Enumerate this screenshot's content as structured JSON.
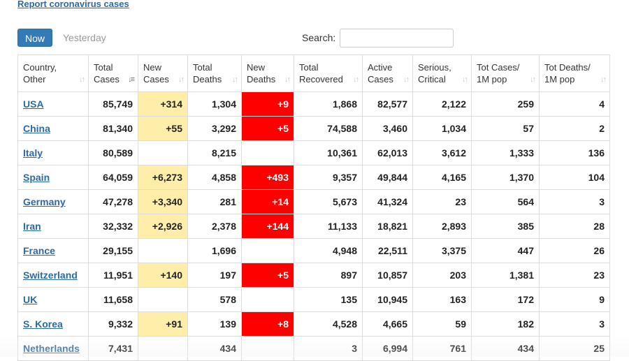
{
  "report_link": "Report coronavirus cases",
  "tabs": {
    "now": "Now",
    "yesterday": "Yesterday"
  },
  "search": {
    "label": "Search:",
    "value": ""
  },
  "columns": [
    [
      "Country,",
      "Other"
    ],
    [
      "Total",
      "Cases"
    ],
    [
      "New",
      "Cases"
    ],
    [
      "Total",
      "Deaths"
    ],
    [
      "New",
      "Deaths"
    ],
    [
      "Total",
      "Recovered"
    ],
    [
      "Active",
      "Cases"
    ],
    [
      "Serious,",
      "Critical"
    ],
    [
      "Tot Cases/",
      "1M pop"
    ],
    [
      "Tot Deaths/",
      "1M pop"
    ]
  ],
  "sort_column_index": 1,
  "colors": {
    "new_cases_highlight": "#ffeeaa",
    "new_deaths_highlight": "#ff0000",
    "link": "#2b6aa3",
    "now_button": "#337ab7"
  },
  "icons": {
    "sort": "sort-arrows-icon"
  },
  "rows": [
    [
      "USA",
      "85,749",
      "+314",
      "1,304",
      "+9",
      "1,868",
      "82,577",
      "2,122",
      "259",
      "4"
    ],
    [
      "China",
      "81,340",
      "+55",
      "3,292",
      "+5",
      "74,588",
      "3,460",
      "1,034",
      "57",
      "2"
    ],
    [
      "Italy",
      "80,589",
      "",
      "8,215",
      "",
      "10,361",
      "62,013",
      "3,612",
      "1,333",
      "136"
    ],
    [
      "Spain",
      "64,059",
      "+6,273",
      "4,858",
      "+493",
      "9,357",
      "49,844",
      "4,165",
      "1,370",
      "104"
    ],
    [
      "Germany",
      "47,278",
      "+3,340",
      "281",
      "+14",
      "5,673",
      "41,324",
      "23",
      "564",
      "3"
    ],
    [
      "Iran",
      "32,332",
      "+2,926",
      "2,378",
      "+144",
      "11,133",
      "18,821",
      "2,893",
      "385",
      "28"
    ],
    [
      "France",
      "29,155",
      "",
      "1,696",
      "",
      "4,948",
      "22,511",
      "3,375",
      "447",
      "26"
    ],
    [
      "Switzerland",
      "11,951",
      "+140",
      "197",
      "+5",
      "897",
      "10,857",
      "203",
      "1,381",
      "23"
    ],
    [
      "UK",
      "11,658",
      "",
      "578",
      "",
      "135",
      "10,945",
      "163",
      "172",
      "9"
    ],
    [
      "S. Korea",
      "9,332",
      "+91",
      "139",
      "+8",
      "4,528",
      "4,665",
      "59",
      "182",
      "3"
    ],
    [
      "Netherlands",
      "7,431",
      "",
      "434",
      "",
      "3",
      "6,994",
      "761",
      "434",
      "25"
    ]
  ]
}
